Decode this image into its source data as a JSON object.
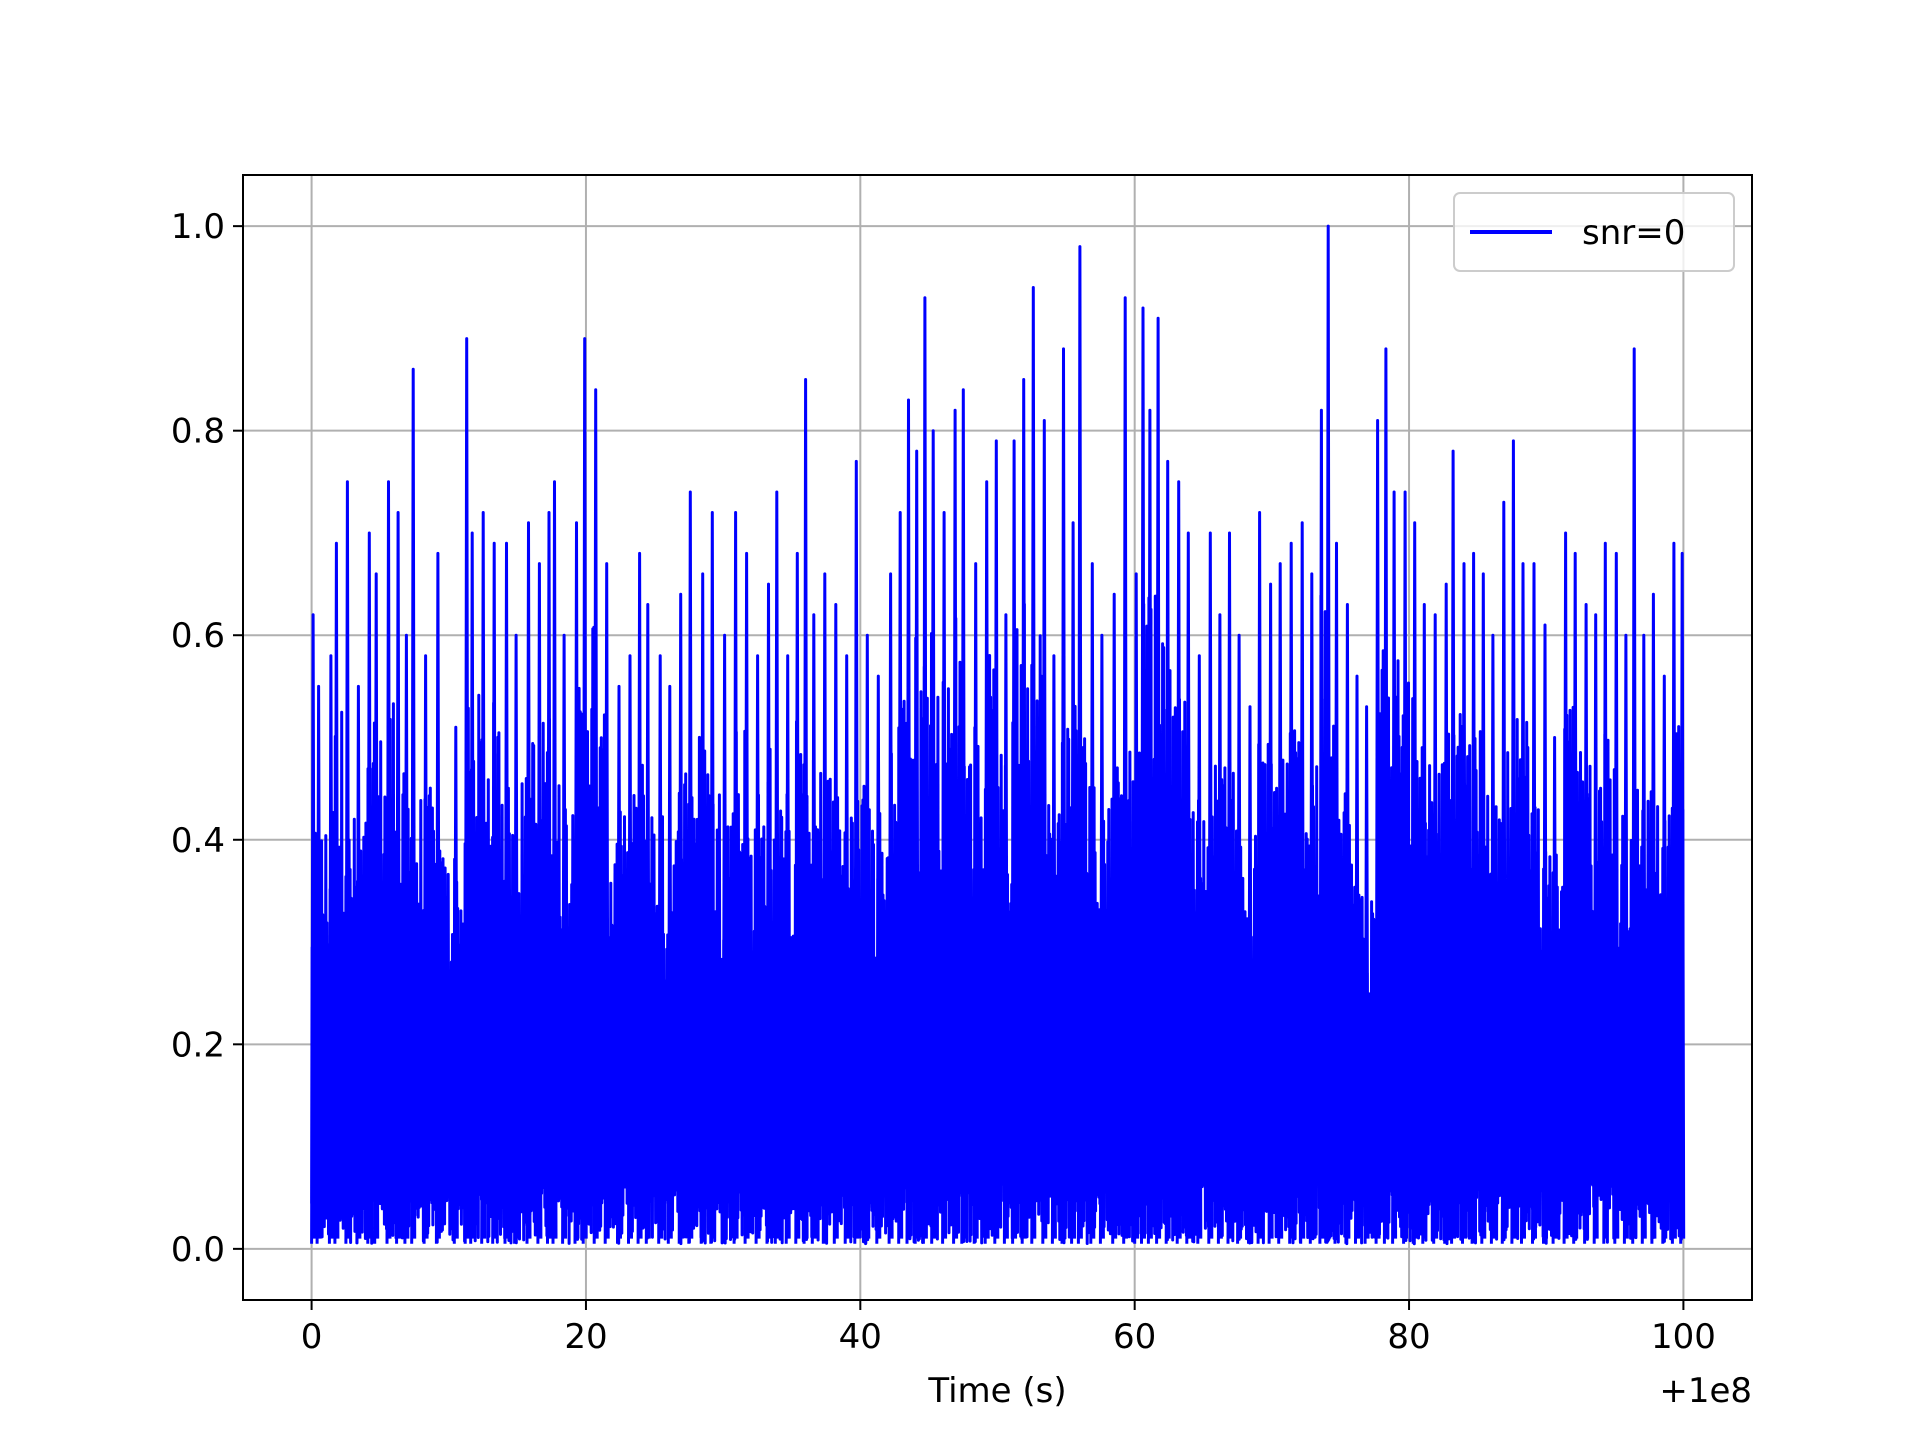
{
  "chart_data": {
    "type": "line",
    "title": "",
    "xlabel": "Time (s)",
    "ylabel": "",
    "x_offset_label": "+1e8",
    "xlim": [
      -5,
      105
    ],
    "ylim": [
      -0.05,
      1.05
    ],
    "x_ticks": [
      0,
      20,
      40,
      60,
      80,
      100
    ],
    "x_tick_labels": [
      "0",
      "20",
      "40",
      "60",
      "80",
      "100"
    ],
    "y_ticks": [
      0.0,
      0.2,
      0.4,
      0.6,
      0.8,
      1.0
    ],
    "y_tick_labels": [
      "0.0",
      "0.2",
      "0.4",
      "0.6",
      "0.8",
      "1.0"
    ],
    "grid": true,
    "legend_position": "top-right",
    "colors": {
      "series": "#0000ff",
      "grid": "#b0b0b0"
    },
    "series": [
      {
        "name": "snr=0",
        "x_range": [
          0,
          100
        ],
        "value_range": [
          0.0,
          1.0
        ],
        "peaks": [
          [
            0.0,
            0.62
          ],
          [
            0.4,
            0.55
          ],
          [
            1.3,
            0.58
          ],
          [
            1.7,
            0.69
          ],
          [
            2.5,
            0.75
          ],
          [
            3.3,
            0.55
          ],
          [
            4.1,
            0.7
          ],
          [
            4.6,
            0.66
          ],
          [
            5.5,
            0.75
          ],
          [
            6.2,
            0.72
          ],
          [
            6.8,
            0.6
          ],
          [
            7.3,
            0.86
          ],
          [
            8.2,
            0.58
          ],
          [
            9.1,
            0.68
          ],
          [
            10.4,
            0.51
          ],
          [
            11.2,
            0.89
          ],
          [
            11.6,
            0.7
          ],
          [
            12.4,
            0.72
          ],
          [
            13.2,
            0.69
          ],
          [
            14.1,
            0.69
          ],
          [
            14.8,
            0.6
          ],
          [
            15.7,
            0.71
          ],
          [
            16.5,
            0.67
          ],
          [
            17.2,
            0.72
          ],
          [
            17.6,
            0.75
          ],
          [
            18.3,
            0.6
          ],
          [
            19.2,
            0.71
          ],
          [
            19.8,
            0.89
          ],
          [
            20.6,
            0.84
          ],
          [
            21.4,
            0.67
          ],
          [
            22.3,
            0.55
          ],
          [
            23.1,
            0.58
          ],
          [
            23.8,
            0.68
          ],
          [
            24.4,
            0.63
          ],
          [
            25.3,
            0.58
          ],
          [
            26.0,
            0.55
          ],
          [
            26.8,
            0.64
          ],
          [
            27.5,
            0.74
          ],
          [
            28.4,
            0.66
          ],
          [
            29.1,
            0.72
          ],
          [
            30.0,
            0.6
          ],
          [
            30.8,
            0.72
          ],
          [
            31.6,
            0.68
          ],
          [
            32.4,
            0.58
          ],
          [
            33.2,
            0.65
          ],
          [
            33.8,
            0.74
          ],
          [
            34.6,
            0.58
          ],
          [
            35.3,
            0.68
          ],
          [
            35.9,
            0.85
          ],
          [
            36.5,
            0.62
          ],
          [
            37.3,
            0.66
          ],
          [
            38.1,
            0.63
          ],
          [
            38.9,
            0.58
          ],
          [
            39.6,
            0.77
          ],
          [
            40.4,
            0.6
          ],
          [
            41.2,
            0.56
          ],
          [
            42.1,
            0.66
          ],
          [
            42.8,
            0.72
          ],
          [
            43.4,
            0.83
          ],
          [
            44.0,
            0.78
          ],
          [
            44.6,
            0.93
          ],
          [
            45.2,
            0.8
          ],
          [
            46.0,
            0.72
          ],
          [
            46.8,
            0.82
          ],
          [
            47.4,
            0.84
          ],
          [
            48.3,
            0.67
          ],
          [
            49.1,
            0.75
          ],
          [
            49.8,
            0.79
          ],
          [
            50.5,
            0.62
          ],
          [
            51.1,
            0.79
          ],
          [
            51.8,
            0.85
          ],
          [
            52.5,
            0.94
          ],
          [
            53.3,
            0.81
          ],
          [
            54.0,
            0.58
          ],
          [
            54.7,
            0.88
          ],
          [
            55.4,
            0.71
          ],
          [
            55.9,
            0.98
          ],
          [
            56.8,
            0.67
          ],
          [
            57.5,
            0.6
          ],
          [
            58.4,
            0.64
          ],
          [
            59.2,
            0.93
          ],
          [
            60.0,
            0.66
          ],
          [
            60.5,
            0.92
          ],
          [
            61.0,
            0.82
          ],
          [
            61.6,
            0.91
          ],
          [
            62.3,
            0.77
          ],
          [
            63.1,
            0.75
          ],
          [
            63.8,
            0.7
          ],
          [
            64.6,
            0.58
          ],
          [
            65.4,
            0.7
          ],
          [
            66.1,
            0.62
          ],
          [
            66.8,
            0.7
          ],
          [
            67.5,
            0.6
          ],
          [
            68.3,
            0.53
          ],
          [
            69.0,
            0.72
          ],
          [
            69.8,
            0.65
          ],
          [
            70.5,
            0.67
          ],
          [
            71.3,
            0.69
          ],
          [
            72.1,
            0.71
          ],
          [
            72.8,
            0.66
          ],
          [
            73.5,
            0.82
          ],
          [
            74.0,
            1.0
          ],
          [
            74.6,
            0.69
          ],
          [
            75.4,
            0.63
          ],
          [
            76.1,
            0.56
          ],
          [
            76.8,
            0.53
          ],
          [
            77.6,
            0.81
          ],
          [
            78.2,
            0.88
          ],
          [
            78.8,
            0.74
          ],
          [
            79.6,
            0.74
          ],
          [
            80.3,
            0.71
          ],
          [
            81.0,
            0.63
          ],
          [
            81.8,
            0.62
          ],
          [
            82.6,
            0.65
          ],
          [
            83.1,
            0.78
          ],
          [
            83.9,
            0.67
          ],
          [
            84.6,
            0.68
          ],
          [
            85.3,
            0.66
          ],
          [
            86.0,
            0.6
          ],
          [
            86.8,
            0.73
          ],
          [
            87.5,
            0.79
          ],
          [
            88.2,
            0.67
          ],
          [
            89.0,
            0.67
          ],
          [
            89.8,
            0.61
          ],
          [
            90.5,
            0.5
          ],
          [
            91.3,
            0.7
          ],
          [
            92.0,
            0.68
          ],
          [
            92.8,
            0.63
          ],
          [
            93.5,
            0.62
          ],
          [
            94.2,
            0.69
          ],
          [
            95.0,
            0.68
          ],
          [
            95.7,
            0.6
          ],
          [
            96.3,
            0.88
          ],
          [
            97.0,
            0.6
          ],
          [
            97.7,
            0.64
          ],
          [
            98.5,
            0.56
          ],
          [
            99.2,
            0.69
          ],
          [
            99.8,
            0.68
          ]
        ]
      }
    ]
  }
}
